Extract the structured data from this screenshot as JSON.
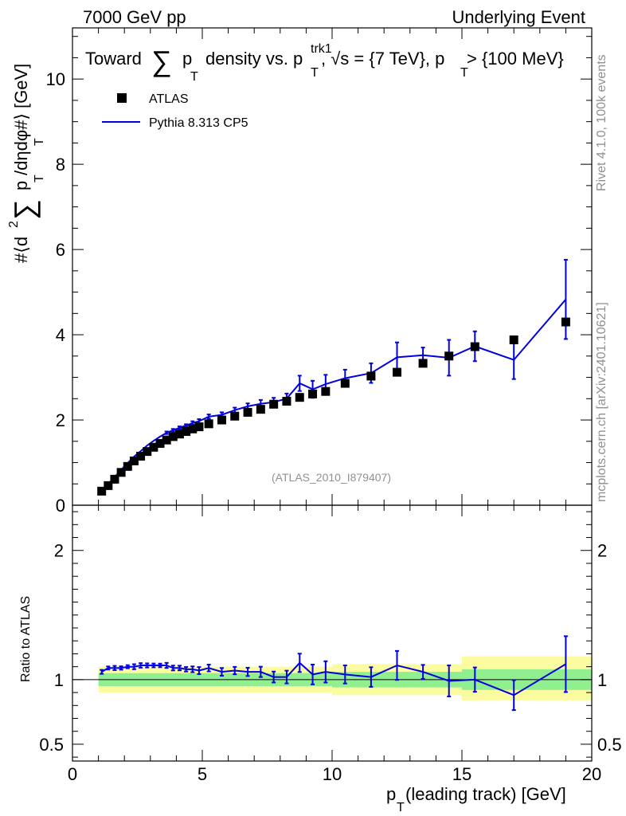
{
  "header": {
    "left": "7000 GeV pp",
    "right": "Underlying Event"
  },
  "title": {
    "part1": "Toward",
    "sum": "∑",
    "p": "p",
    "sub_T": "T",
    "part2": "density vs. p",
    "sup_trk1": "trk1",
    "part3": ", √s = {7 TeV}, p",
    "part4": " > {100 MeV}"
  },
  "side_text": {
    "rivet": "Rivet 4.1.0,  100k events",
    "mcplots": "mcplots.cern.ch [arXiv:2401.10621]"
  },
  "watermark": "(ATLAS_2010_I879407)",
  "legend": {
    "data_label": "ATLAS",
    "mc_label": "Pythia 8.313 CP5"
  },
  "ylabel_main": {
    "prefix": "#⟨d",
    "sup2": "2",
    "sum": "∑",
    "p": "p",
    "sub_T1": "T",
    "mid": " /dηdφ#⟩ [GeV]",
    "sub_T2": "T"
  },
  "ylabel_ratio": "Ratio to ATLAS",
  "xlabel": {
    "p": "p",
    "sub": "T",
    "rest": " (leading track) [GeV]"
  },
  "colors": {
    "mc": "#0000e0",
    "band_inner": "#90f090",
    "band_outer": "#fbfba0",
    "data": "#000000"
  },
  "chart_data": {
    "type": "line",
    "title": "Toward ∑p_T density vs. p_T^trk1, √s = {7 TeV}, p_T > {100 MeV}",
    "xlabel": "p_T (leading track) [GeV]",
    "ylabel": "#⟨d² ∑p_T /dηdφ#⟩ [GeV]",
    "xlim": [
      0,
      20
    ],
    "ylim_main": [
      0,
      11.2
    ],
    "ylim_ratio": [
      0.37,
      2.35
    ],
    "x_ticks": [
      "0",
      "5",
      "10",
      "15",
      "20"
    ],
    "y_ticks_main": [
      "0",
      "2",
      "4",
      "6",
      "8",
      "10"
    ],
    "y_ticks_ratio": [
      "0.5",
      "1",
      "2"
    ],
    "x": [
      1.125,
      1.375,
      1.625,
      1.875,
      2.125,
      2.375,
      2.625,
      2.875,
      3.125,
      3.375,
      3.625,
      3.875,
      4.125,
      4.375,
      4.625,
      4.875,
      5.25,
      5.75,
      6.25,
      6.75,
      7.25,
      7.75,
      8.25,
      8.75,
      9.25,
      9.75,
      10.5,
      11.5,
      12.5,
      13.5,
      14.5,
      15.5,
      17.0,
      19.0
    ],
    "series": [
      {
        "name": "ATLAS",
        "values": [
          0.33,
          0.46,
          0.61,
          0.77,
          0.91,
          1.04,
          1.15,
          1.26,
          1.36,
          1.45,
          1.53,
          1.61,
          1.67,
          1.73,
          1.79,
          1.84,
          1.91,
          2.0,
          2.09,
          2.18,
          2.25,
          2.37,
          2.44,
          2.53,
          2.61,
          2.67,
          2.86,
          3.03,
          3.12,
          3.33,
          3.5,
          3.72,
          3.88,
          4.3
        ]
      },
      {
        "name": "Pythia 8.313 CP5",
        "values": [
          0.35,
          0.5,
          0.66,
          0.83,
          0.99,
          1.14,
          1.27,
          1.4,
          1.51,
          1.61,
          1.7,
          1.76,
          1.82,
          1.87,
          1.93,
          1.97,
          2.08,
          2.12,
          2.23,
          2.32,
          2.38,
          2.42,
          2.5,
          2.86,
          2.72,
          2.84,
          2.98,
          3.1,
          3.47,
          3.52,
          3.46,
          3.73,
          3.41,
          4.83
        ],
        "errors": [
          0.005,
          0.005,
          0.01,
          0.01,
          0.01,
          0.02,
          0.02,
          0.02,
          0.02,
          0.02,
          0.03,
          0.03,
          0.03,
          0.03,
          0.04,
          0.05,
          0.05,
          0.06,
          0.06,
          0.07,
          0.09,
          0.1,
          0.12,
          0.18,
          0.2,
          0.22,
          0.2,
          0.23,
          0.35,
          0.18,
          0.42,
          0.35,
          0.45,
          0.93
        ]
      }
    ],
    "ratio": [
      1.06,
      1.09,
      1.09,
      1.09,
      1.1,
      1.1,
      1.11,
      1.11,
      1.11,
      1.11,
      1.11,
      1.09,
      1.09,
      1.08,
      1.08,
      1.07,
      1.09,
      1.06,
      1.07,
      1.06,
      1.06,
      1.02,
      1.02,
      1.13,
      1.04,
      1.06,
      1.04,
      1.02,
      1.11,
      1.06,
      0.99,
      1.0,
      0.88,
      1.12
    ],
    "ratio_band_inner": [
      [
        1.0,
        10.0,
        0.95,
        1.05
      ],
      [
        10.0,
        15.0,
        0.94,
        1.06
      ],
      [
        15.0,
        20.0,
        0.92,
        1.08
      ]
    ],
    "ratio_band_outer": [
      [
        1.0,
        10.0,
        0.9,
        1.1
      ],
      [
        10.0,
        15.0,
        0.88,
        1.12
      ],
      [
        15.0,
        20.0,
        0.84,
        1.18
      ]
    ]
  }
}
